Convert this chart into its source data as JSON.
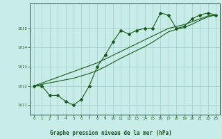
{
  "x": [
    0,
    1,
    2,
    3,
    4,
    5,
    6,
    7,
    8,
    9,
    10,
    11,
    12,
    13,
    14,
    15,
    16,
    17,
    18,
    19,
    20,
    21,
    22,
    23
  ],
  "y_main": [
    1012.0,
    1012.0,
    1011.5,
    1011.5,
    1011.2,
    1011.0,
    1011.3,
    1012.0,
    1013.0,
    1013.6,
    1014.3,
    1014.9,
    1014.7,
    1014.9,
    1015.0,
    1015.0,
    1015.8,
    1015.7,
    1015.0,
    1015.1,
    1015.5,
    1015.7,
    1015.8,
    1015.7
  ],
  "y_line1": [
    1012.0,
    1012.15,
    1012.3,
    1012.45,
    1012.6,
    1012.75,
    1012.9,
    1013.05,
    1013.2,
    1013.4,
    1013.6,
    1013.8,
    1014.0,
    1014.2,
    1014.4,
    1014.6,
    1014.8,
    1015.0,
    1015.1,
    1015.2,
    1015.35,
    1015.5,
    1015.65,
    1015.7
  ],
  "y_line2": [
    1012.0,
    1012.08,
    1012.16,
    1012.24,
    1012.32,
    1012.4,
    1012.52,
    1012.65,
    1012.8,
    1013.0,
    1013.22,
    1013.45,
    1013.65,
    1013.85,
    1014.05,
    1014.28,
    1014.55,
    1014.82,
    1014.95,
    1015.05,
    1015.22,
    1015.42,
    1015.6,
    1015.7
  ],
  "line_color": "#1a5c1a",
  "bg_color": "#c8ece8",
  "grid_color": "#a0ccc8",
  "xlabel": "Graphe pression niveau de la mer (hPa)",
  "ylim": [
    1010.5,
    1016.3
  ],
  "xlim": [
    -0.5,
    23.5
  ],
  "yticks": [
    1011,
    1012,
    1013,
    1014,
    1015
  ],
  "xticks": [
    0,
    1,
    2,
    3,
    4,
    5,
    6,
    7,
    8,
    9,
    10,
    11,
    12,
    13,
    14,
    15,
    16,
    17,
    18,
    19,
    20,
    21,
    22,
    23
  ]
}
